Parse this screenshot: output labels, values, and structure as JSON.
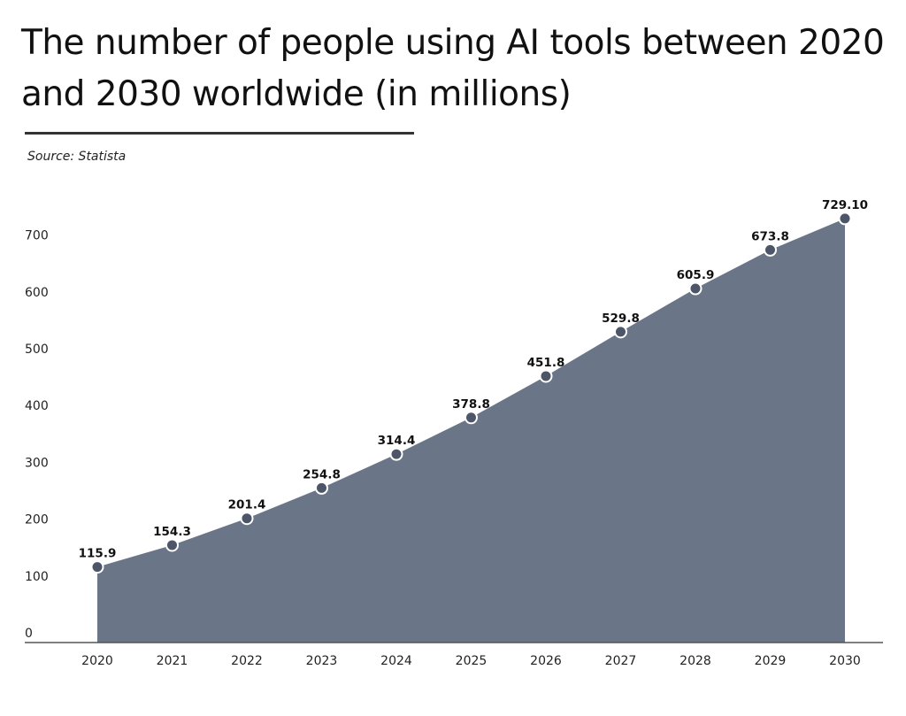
{
  "title": "The number of people using AI tools between 2020 and 2030 worldwide (in millions)",
  "source": "Source: Statista",
  "colors": {
    "area_fill": "#6b7588",
    "marker_fill": "#4d5669",
    "marker_stroke": "#ffffff",
    "axis": "#555555"
  },
  "chart_data": {
    "type": "area",
    "title": "The number of people using AI tools between 2020 and 2030 worldwide (in millions)",
    "categories": [
      "2020",
      "2021",
      "2022",
      "2023",
      "2024",
      "2025",
      "2026",
      "2027",
      "2028",
      "2029",
      "2030"
    ],
    "values": [
      115.9,
      154.3,
      201.4,
      254.8,
      314.4,
      378.8,
      451.8,
      529.8,
      605.9,
      673.8,
      729.1
    ],
    "data_labels": [
      "115.9",
      "154.3",
      "201.4",
      "254.8",
      "314.4",
      "378.8",
      "451.8",
      "529.8",
      "605.9",
      "673.8",
      "729.10"
    ],
    "y_ticks": [
      "0",
      "100",
      "200",
      "300",
      "400",
      "500",
      "600",
      "700"
    ],
    "ylim": [
      0,
      720
    ],
    "xlabel": "",
    "ylabel": "",
    "grid": false,
    "legend": "none"
  }
}
